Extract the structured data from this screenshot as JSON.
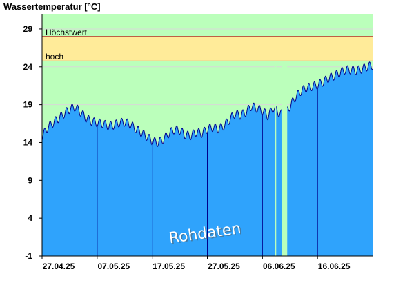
{
  "chart_data": {
    "type": "area",
    "title": "Wassertemperatur [°C]",
    "xlabel": "",
    "ylabel": "",
    "ylim": [
      -1,
      31
    ],
    "xlim": [
      "2025-04-27",
      "2025-06-26"
    ],
    "y_ticks": [
      "29",
      "24",
      "19",
      "14",
      "9",
      "4",
      "-1"
    ],
    "x_ticks": [
      {
        "date": "2025-04-27",
        "label": "27.04.25"
      },
      {
        "date": "2025-05-07",
        "label": "07.05.25"
      },
      {
        "date": "2025-05-17",
        "label": "17.05.25"
      },
      {
        "date": "2025-05-27",
        "label": "27.05.25"
      },
      {
        "date": "2025-06-06",
        "label": "06.06.25"
      },
      {
        "date": "2025-06-16",
        "label": "16.06.25"
      }
    ],
    "grid": true,
    "thresholds": [
      {
        "label": "Höchstwert",
        "value": 28
      },
      {
        "label": "hoch",
        "value": 24.8
      }
    ],
    "colors": {
      "area": "#2fa3fc",
      "line": "#00008b",
      "band_normal": "#bbffbb",
      "band_high": "#ffeb99",
      "threshold_max": "#c00000",
      "grid": "#d8d8d8"
    },
    "gaps": [
      {
        "from": "2025-06-08T06:00",
        "to": "2025-06-08T12:00"
      },
      {
        "from": "2025-06-09T12:00",
        "to": "2025-06-10T12:00"
      }
    ],
    "watermark": "Rohdaten",
    "series": [
      {
        "values": [
          [
            "2025-04-27",
            14.8
          ],
          [
            "2025-04-28",
            16.0
          ],
          [
            "2025-04-29",
            16.6
          ],
          [
            "2025-04-30",
            17.2
          ],
          [
            "2025-05-01",
            17.8
          ],
          [
            "2025-05-02",
            18.4
          ],
          [
            "2025-05-03",
            18.7
          ],
          [
            "2025-05-04",
            18.0
          ],
          [
            "2025-05-05",
            17.2
          ],
          [
            "2025-05-06",
            16.8
          ],
          [
            "2025-05-07",
            16.6
          ],
          [
            "2025-05-08",
            16.5
          ],
          [
            "2025-05-09",
            16.2
          ],
          [
            "2025-05-10",
            16.3
          ],
          [
            "2025-05-11",
            16.6
          ],
          [
            "2025-05-12",
            16.7
          ],
          [
            "2025-05-13",
            16.4
          ],
          [
            "2025-05-14",
            15.8
          ],
          [
            "2025-05-15",
            15.3
          ],
          [
            "2025-05-16",
            14.8
          ],
          [
            "2025-05-17",
            14.2
          ],
          [
            "2025-05-18",
            14.0
          ],
          [
            "2025-05-19",
            14.4
          ],
          [
            "2025-05-20",
            15.2
          ],
          [
            "2025-05-21",
            15.7
          ],
          [
            "2025-05-22",
            15.6
          ],
          [
            "2025-05-23",
            15.0
          ],
          [
            "2025-05-24",
            14.9
          ],
          [
            "2025-05-25",
            15.4
          ],
          [
            "2025-05-26",
            15.2
          ],
          [
            "2025-05-27",
            15.8
          ],
          [
            "2025-05-28",
            16.0
          ],
          [
            "2025-05-29",
            15.8
          ],
          [
            "2025-05-30",
            16.2
          ],
          [
            "2025-05-31",
            17.0
          ],
          [
            "2025-06-01",
            17.8
          ],
          [
            "2025-06-02",
            17.6
          ],
          [
            "2025-06-03",
            18.0
          ],
          [
            "2025-06-04",
            18.8
          ],
          [
            "2025-06-05",
            18.5
          ],
          [
            "2025-06-06",
            18.2
          ],
          [
            "2025-06-07",
            17.5
          ],
          [
            "2025-06-08",
            18.6
          ],
          [
            "2025-06-09",
            17.9
          ],
          [
            "2025-06-10",
            17.6
          ],
          [
            "2025-06-11",
            18.8
          ],
          [
            "2025-06-12",
            20.0
          ],
          [
            "2025-06-13",
            20.8
          ],
          [
            "2025-06-14",
            21.2
          ],
          [
            "2025-06-15",
            21.4
          ],
          [
            "2025-06-16",
            21.6
          ],
          [
            "2025-06-17",
            22.0
          ],
          [
            "2025-06-18",
            22.5
          ],
          [
            "2025-06-19",
            22.8
          ],
          [
            "2025-06-20",
            23.2
          ],
          [
            "2025-06-21",
            23.6
          ],
          [
            "2025-06-22",
            23.6
          ],
          [
            "2025-06-23",
            23.5
          ],
          [
            "2025-06-24",
            23.7
          ],
          [
            "2025-06-25",
            24.0
          ],
          [
            "2025-06-26",
            24.2
          ]
        ]
      }
    ]
  }
}
